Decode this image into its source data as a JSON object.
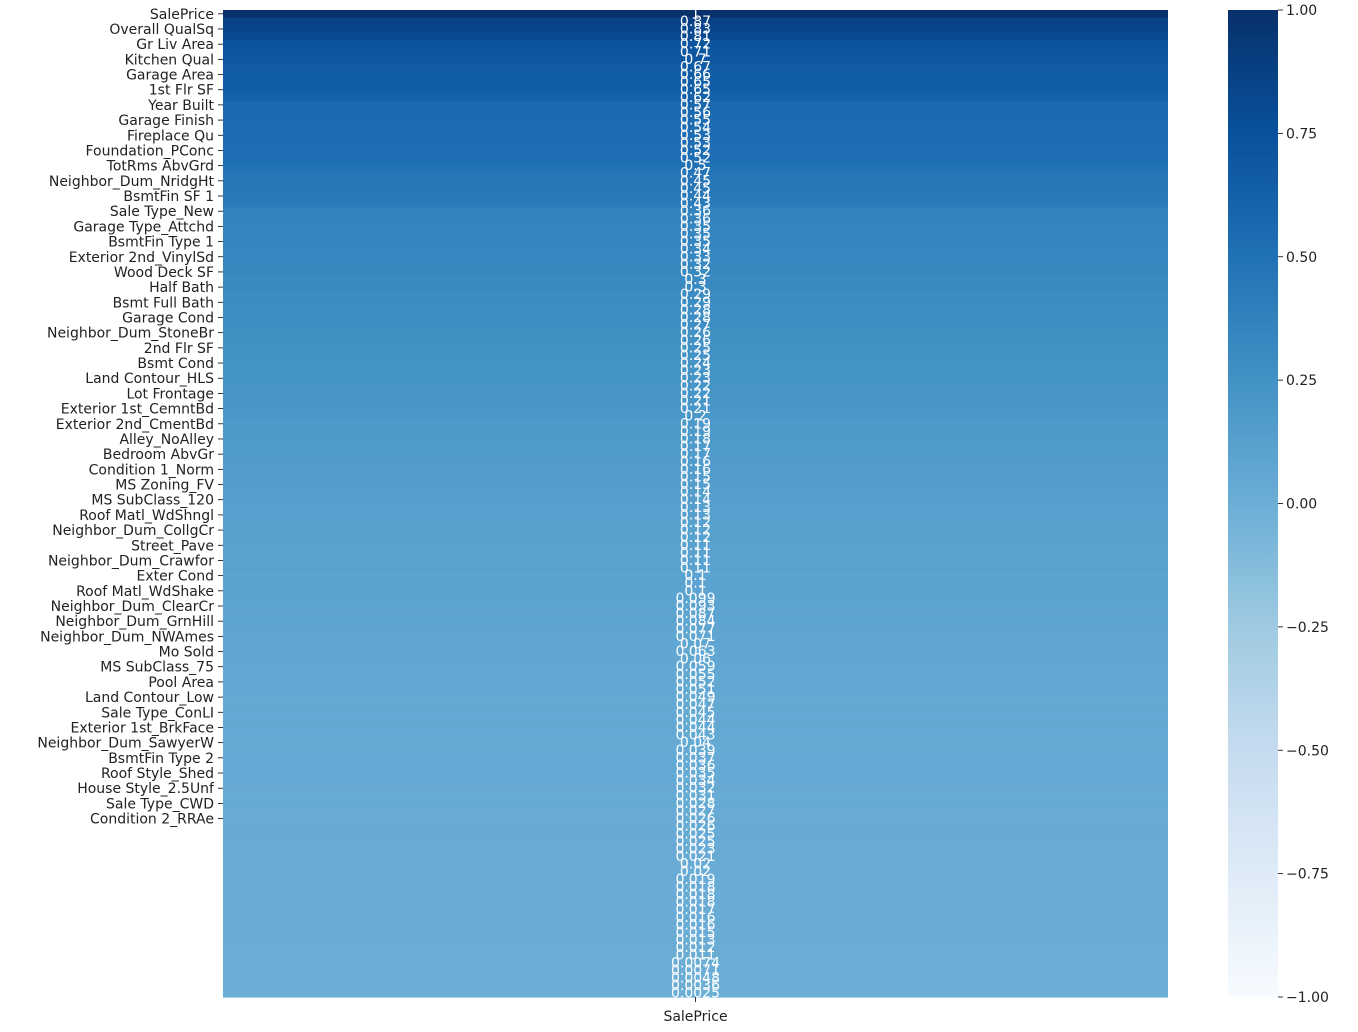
{
  "chart_data": {
    "type": "heatmap",
    "title": "",
    "xlabel": "",
    "ylabel": "",
    "column_labels": [
      "SalePrice"
    ],
    "row_tick_labels": [
      "SalePrice",
      "Overall QualSq",
      "Gr Liv Area",
      "Kitchen Qual",
      "Garage Area",
      "1st Flr SF",
      "Year Built",
      "Garage Finish",
      "Fireplace Qu",
      "Foundation_PConc",
      "TotRms AbvGrd",
      "Neighbor_Dum_NridgHt",
      "BsmtFin SF 1",
      "Sale Type_New",
      "Garage Type_Attchd",
      "BsmtFin Type 1",
      "Exterior 2nd_VinylSd",
      "Wood Deck SF",
      "Half Bath",
      "Bsmt Full Bath",
      "Garage Cond",
      "Neighbor_Dum_StoneBr",
      "2nd Flr SF",
      "Bsmt Cond",
      "Land Contour_HLS",
      "Lot Frontage",
      "Exterior 1st_CemntBd",
      "Exterior 2nd_CmentBd",
      "Alley_NoAlley",
      "Bedroom AbvGr",
      "Condition 1_Norm",
      "MS Zoning_FV",
      "MS SubClass_120",
      "Roof Matl_WdShngl",
      "Neighbor_Dum_CollgCr",
      "Street_Pave",
      "Neighbor_Dum_Crawfor",
      "Exter Cond",
      "Roof Matl_WdShake",
      "Neighbor_Dum_ClearCr",
      "Neighbor_Dum_GrnHill",
      "Neighbor_Dum_NWAmes",
      "Mo Sold",
      "MS SubClass_75",
      "Pool Area",
      "Land Contour_Low",
      "Sale Type_ConLI",
      "Exterior 1st_BrkFace",
      "Neighbor_Dum_SawyerW",
      "BsmtFin Type 2",
      "Roof Style_Shed",
      "House Style_2.5Unf",
      "Sale Type_CWD",
      "Condition 2_RRAe"
    ],
    "values": [
      1,
      0.87,
      0.83,
      0.81,
      0.72,
      0.71,
      0.7,
      0.67,
      0.66,
      0.65,
      0.65,
      0.62,
      0.57,
      0.56,
      0.55,
      0.54,
      0.53,
      0.53,
      0.52,
      0.52,
      0.5,
      0.47,
      0.45,
      0.45,
      0.44,
      0.43,
      0.36,
      0.36,
      0.35,
      0.35,
      0.35,
      0.34,
      0.33,
      0.32,
      0.32,
      0.3,
      0.3,
      0.29,
      0.29,
      0.28,
      0.28,
      0.27,
      0.26,
      0.26,
      0.25,
      0.25,
      0.24,
      0.23,
      0.23,
      0.22,
      0.22,
      0.21,
      0.21,
      0.2,
      0.19,
      0.19,
      0.18,
      0.17,
      0.17,
      0.16,
      0.16,
      0.15,
      0.15,
      0.14,
      0.14,
      0.13,
      0.13,
      0.12,
      0.12,
      0.12,
      0.11,
      0.11,
      0.11,
      0.11,
      0.1,
      0.1,
      0.1,
      0.099,
      0.093,
      0.087,
      0.084,
      0.077,
      0.071,
      0.07,
      0.063,
      0.06,
      0.059,
      0.055,
      0.052,
      0.051,
      0.049,
      0.047,
      0.045,
      0.044,
      0.044,
      0.043,
      0.04,
      0.039,
      0.037,
      0.036,
      0.035,
      0.034,
      0.032,
      0.031,
      0.028,
      0.027,
      0.026,
      0.026,
      0.025,
      0.025,
      0.023,
      0.021,
      0.02,
      0.02,
      0.019,
      0.018,
      0.018,
      0.018,
      0.017,
      0.016,
      0.016,
      0.015,
      0.013,
      0.012,
      0.011,
      0.0074,
      0.0071,
      0.0048,
      0.0036,
      0.0025
    ],
    "colorbar": {
      "colormap": "Blues",
      "range": [
        -1.0,
        1.0
      ],
      "ticks": [
        "1.00",
        "0.75",
        "0.50",
        "0.25",
        "0.00",
        "−0.25",
        "−0.50",
        "−0.75",
        "−1.00"
      ]
    },
    "annotation_color": "#ffffff"
  }
}
